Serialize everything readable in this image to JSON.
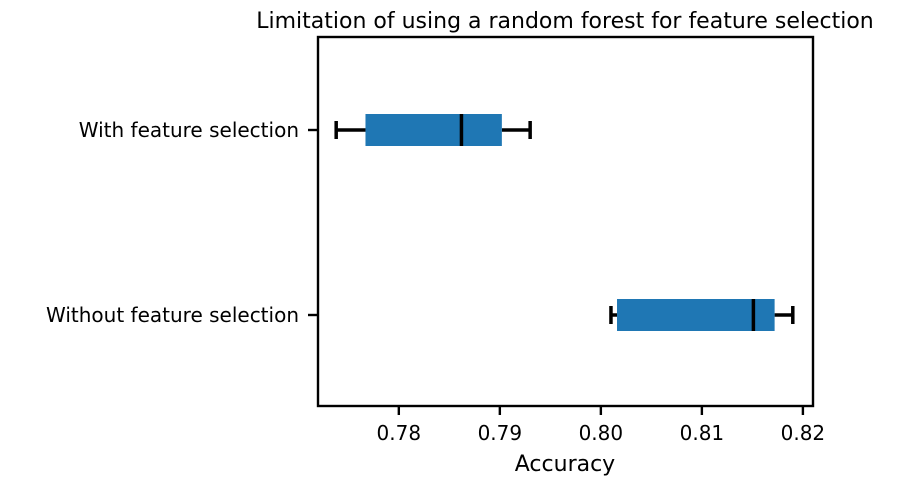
{
  "chart_data": {
    "type": "boxplot",
    "orientation": "horizontal",
    "title": "Limitation of using a random forest for feature selection",
    "xlabel": "Accuracy",
    "ylabel": "",
    "xlim": [
      0.772,
      0.821
    ],
    "xticks": [
      0.78,
      0.79,
      0.8,
      0.81,
      0.82
    ],
    "xtick_labels": [
      "0.78",
      "0.79",
      "0.80",
      "0.81",
      "0.82"
    ],
    "categories": [
      "With feature selection",
      "Without feature selection"
    ],
    "boxes": [
      {
        "label": "With feature selection",
        "whisker_low": 0.7738,
        "q1": 0.7767,
        "median": 0.7862,
        "q3": 0.7902,
        "whisker_high": 0.793
      },
      {
        "label": "Without feature selection",
        "whisker_low": 0.801,
        "q1": 0.8016,
        "median": 0.8151,
        "q3": 0.8172,
        "whisker_high": 0.819
      }
    ],
    "box_color": "#1f77b4",
    "line_color": "#000000",
    "grid": false,
    "legend": "none"
  }
}
